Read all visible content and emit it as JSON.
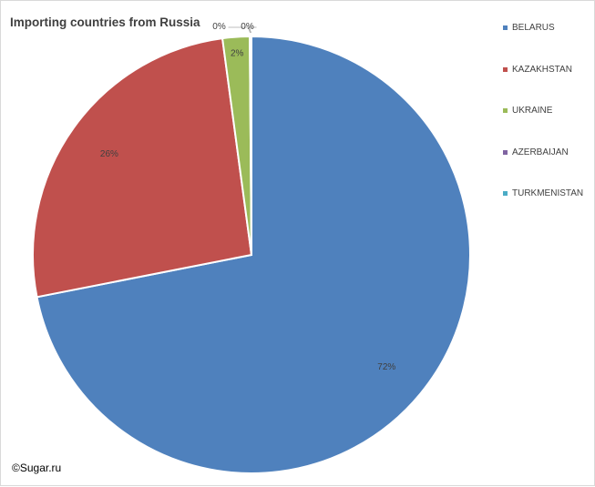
{
  "chart_data": {
    "type": "pie",
    "title": "Importing countries from Russia",
    "categories": [
      "BELARUS",
      "KAZAKHSTAN",
      "UKRAINE",
      "AZERBAIJAN",
      "TURKMENISTAN"
    ],
    "values": [
      72,
      26,
      2,
      0,
      0
    ],
    "data_labels": [
      "72%",
      "26%",
      "2%",
      "0%",
      "0%"
    ],
    "colors": [
      "#4f81bd",
      "#c0504d",
      "#9bbb59",
      "#8064a2",
      "#4bacc6"
    ],
    "legend_placement": "right"
  },
  "footer": {
    "copyright": "©Sugar.ru"
  }
}
